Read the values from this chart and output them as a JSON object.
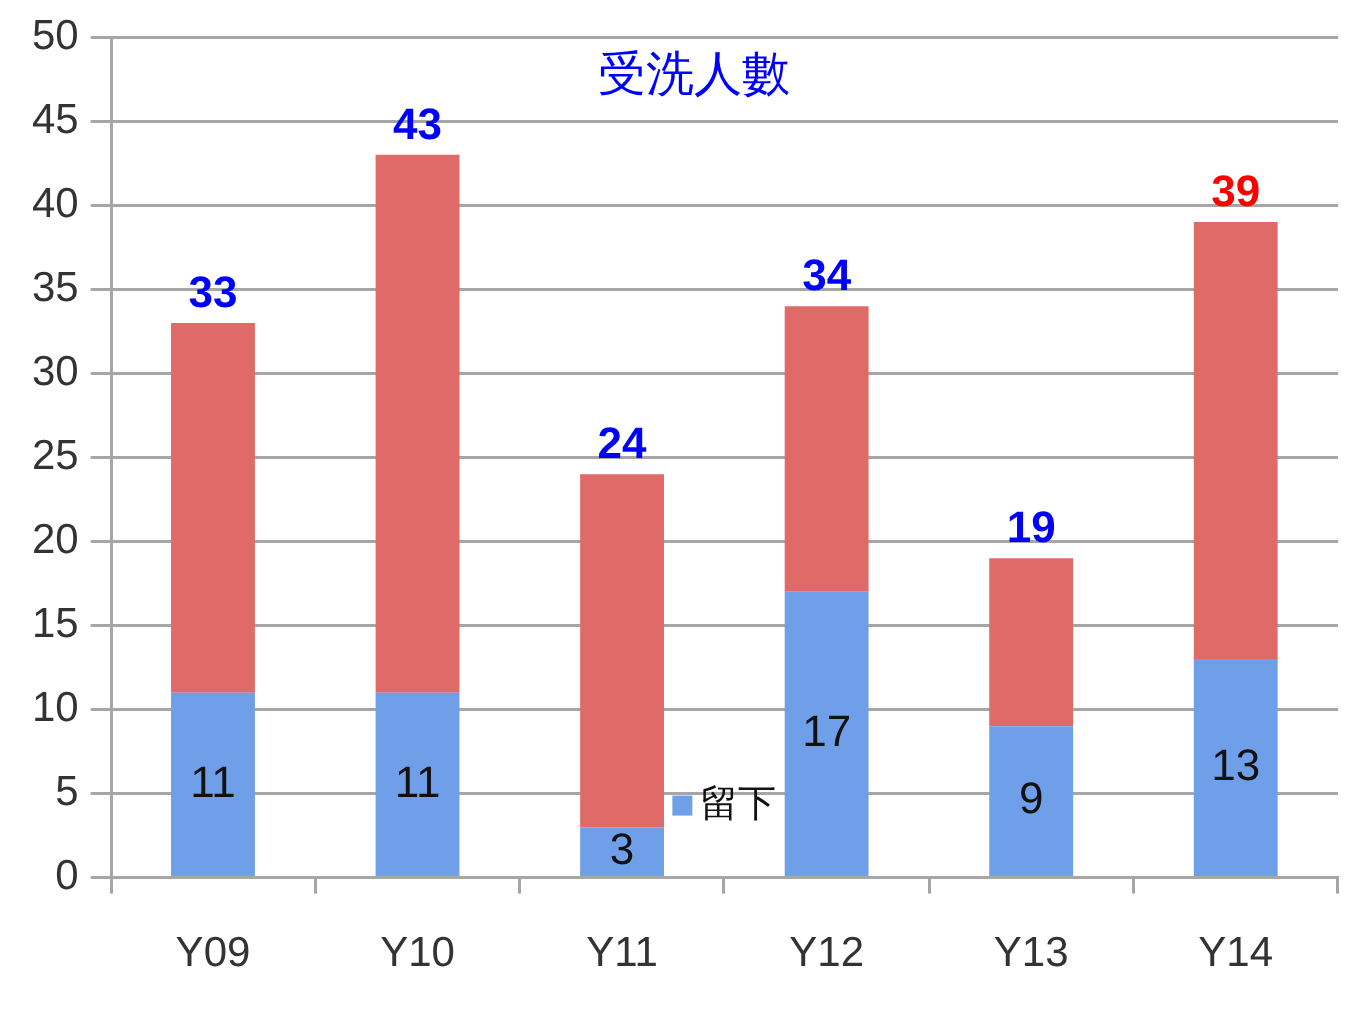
{
  "chart_data": {
    "type": "bar",
    "title": "受洗人數",
    "categories": [
      "Y09",
      "Y10",
      "Y11",
      "Y12",
      "Y13",
      "Y14"
    ],
    "stacked": true,
    "series": [
      {
        "name": "留下",
        "color": "#6f9fe8",
        "values": [
          11,
          11,
          3,
          17,
          9,
          13
        ],
        "value_labels": [
          "11",
          "11",
          "3",
          "17",
          "9",
          "13"
        ]
      },
      {
        "color": "#e06a68",
        "values": [
          22,
          32,
          21,
          17,
          10,
          26
        ]
      }
    ],
    "totals": [
      "33",
      "43",
      "24",
      "34",
      "19",
      "39"
    ],
    "ylim": [
      0,
      50
    ],
    "yticks": [
      0,
      5,
      10,
      15,
      20,
      25,
      30,
      35,
      40,
      45,
      50
    ],
    "grid": "y",
    "legend": "bottom"
  }
}
